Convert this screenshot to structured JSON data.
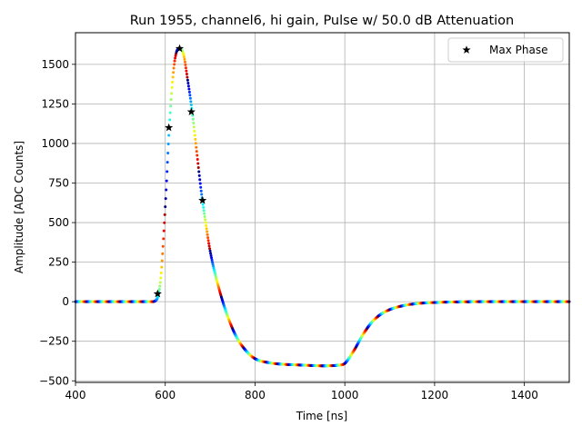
{
  "chart_data": {
    "type": "scatter",
    "title": "Run 1955, channel6, hi gain, Pulse w/ 50.0 dB Attenuation",
    "xlabel": "Time [ns]",
    "ylabel": "Amplitude [ADC Counts]",
    "xlim": [
      400,
      1500
    ],
    "ylim": [
      -510,
      1700
    ],
    "xticks": [
      400,
      600,
      800,
      1000,
      1200,
      1400
    ],
    "yticks": [
      -500,
      -250,
      0,
      250,
      500,
      750,
      1000,
      1250,
      1500
    ],
    "grid": true,
    "legend": {
      "position": "top-right",
      "entries": [
        "Max Phase"
      ]
    },
    "colormap": "jet",
    "series": [
      {
        "name": "Max Phase",
        "marker": "star",
        "color": "#000000",
        "x": [
          583,
          608,
          632,
          658,
          683
        ],
        "y": [
          50,
          1100,
          1600,
          1200,
          640
        ]
      }
    ],
    "waveform_keypoints": {
      "x": [
        400,
        570,
        580,
        590,
        600,
        610,
        620,
        630,
        640,
        650,
        660,
        670,
        680,
        690,
        700,
        720,
        740,
        760,
        780,
        800,
        830,
        860,
        900,
        950,
        990,
        1000,
        1020,
        1040,
        1060,
        1080,
        1100,
        1130,
        1160,
        1200,
        1300,
        1500
      ],
      "y": [
        0,
        0,
        10,
        150,
        600,
        1150,
        1500,
        1600,
        1570,
        1400,
        1200,
        950,
        700,
        500,
        320,
        80,
        -100,
        -230,
        -310,
        -360,
        -385,
        -395,
        -400,
        -405,
        -400,
        -390,
        -310,
        -210,
        -130,
        -80,
        -50,
        -25,
        -12,
        -5,
        0,
        0
      ]
    }
  }
}
